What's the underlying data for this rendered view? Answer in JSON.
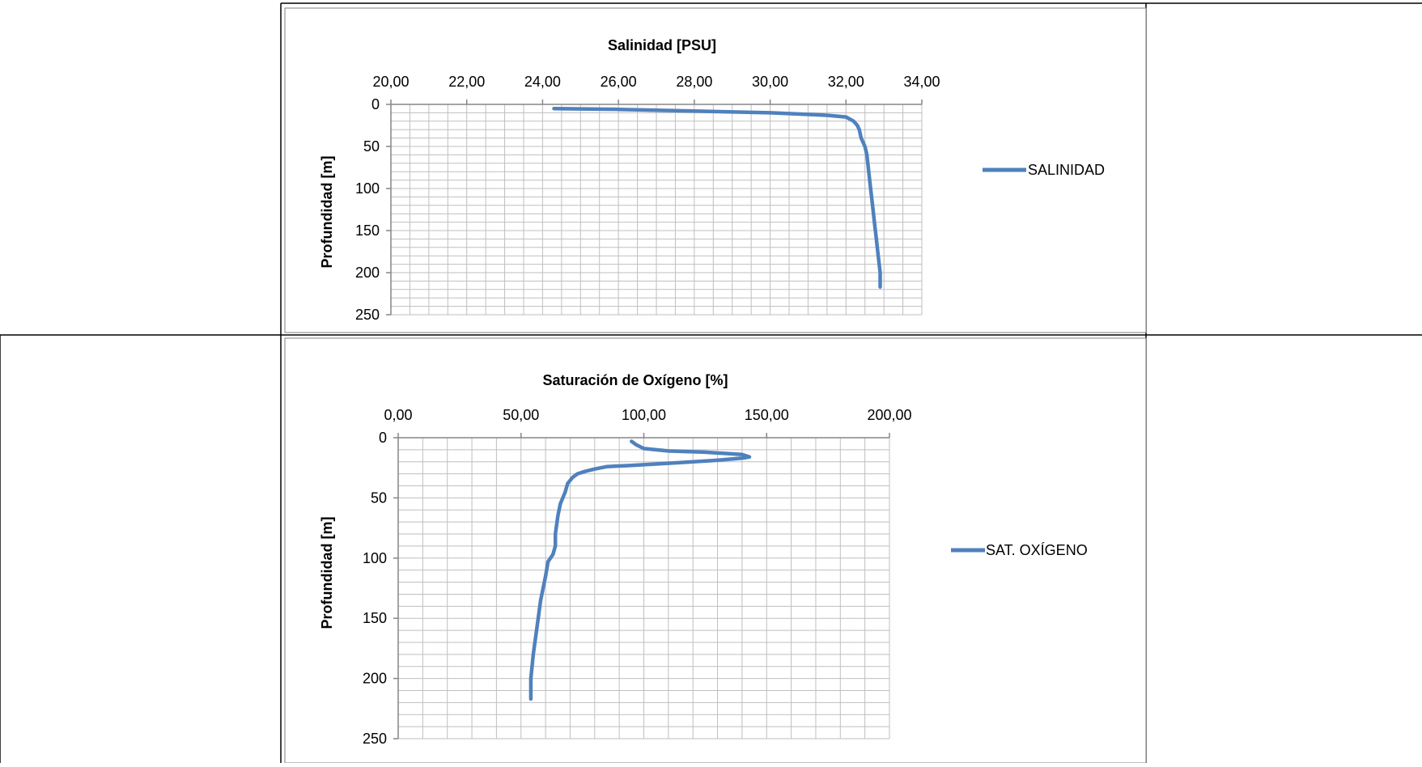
{
  "chart_data": [
    {
      "type": "line",
      "title": "Salinidad [PSU]",
      "xlabel": "",
      "ylabel": "Profundidad [m]",
      "x_axis_position": "top",
      "y_axis_inverted": true,
      "xlim": [
        20,
        34
      ],
      "ylim": [
        0,
        250
      ],
      "x_ticks": [
        "20,00",
        "22,00",
        "24,00",
        "26,00",
        "28,00",
        "30,00",
        "32,00",
        "34,00"
      ],
      "y_ticks": [
        "0",
        "50",
        "100",
        "150",
        "200",
        "250"
      ],
      "grid": true,
      "legend": "right",
      "color": "#4f81bd",
      "series": [
        {
          "name": "SALINIDAD",
          "points": [
            [
              24.3,
              5
            ],
            [
              26.0,
              6
            ],
            [
              28.0,
              8
            ],
            [
              30.0,
              10
            ],
            [
              31.5,
              13
            ],
            [
              32.0,
              15
            ],
            [
              32.2,
              20
            ],
            [
              32.3,
              25
            ],
            [
              32.35,
              30
            ],
            [
              32.4,
              40
            ],
            [
              32.5,
              50
            ],
            [
              32.55,
              60
            ],
            [
              32.6,
              80
            ],
            [
              32.65,
              100
            ],
            [
              32.7,
              120
            ],
            [
              32.75,
              140
            ],
            [
              32.8,
              160
            ],
            [
              32.85,
              180
            ],
            [
              32.9,
              200
            ],
            [
              32.9,
              217
            ]
          ]
        }
      ]
    },
    {
      "type": "line",
      "title": "Saturación de Oxígeno [%]",
      "xlabel": "",
      "ylabel": "Profundidad [m]",
      "x_axis_position": "top",
      "y_axis_inverted": true,
      "xlim": [
        0,
        200
      ],
      "ylim": [
        0,
        250
      ],
      "x_ticks": [
        "0,00",
        "50,00",
        "100,00",
        "150,00",
        "200,00"
      ],
      "y_ticks": [
        "0",
        "50",
        "100",
        "150",
        "200",
        "250"
      ],
      "grid": true,
      "legend": "right",
      "color": "#4f81bd",
      "series": [
        {
          "name": "SAT. OXÍGENO",
          "points": [
            [
              95,
              3
            ],
            [
              97,
              6
            ],
            [
              100,
              9
            ],
            [
              110,
              11
            ],
            [
              125,
              12
            ],
            [
              140,
              14
            ],
            [
              143,
              16
            ],
            [
              140,
              17
            ],
            [
              128,
              19
            ],
            [
              112,
              21
            ],
            [
              95,
              23
            ],
            [
              85,
              24
            ],
            [
              80,
              26
            ],
            [
              76,
              28
            ],
            [
              73,
              30
            ],
            [
              71,
              33
            ],
            [
              69,
              38
            ],
            [
              68,
              45
            ],
            [
              66,
              55
            ],
            [
              65,
              65
            ],
            [
              64,
              80
            ],
            [
              64,
              90
            ],
            [
              63,
              97
            ],
            [
              61,
              103
            ],
            [
              60,
              115
            ],
            [
              58,
              135
            ],
            [
              57,
              150
            ],
            [
              55,
              180
            ],
            [
              54,
              200
            ],
            [
              54,
              217
            ]
          ]
        }
      ]
    }
  ]
}
